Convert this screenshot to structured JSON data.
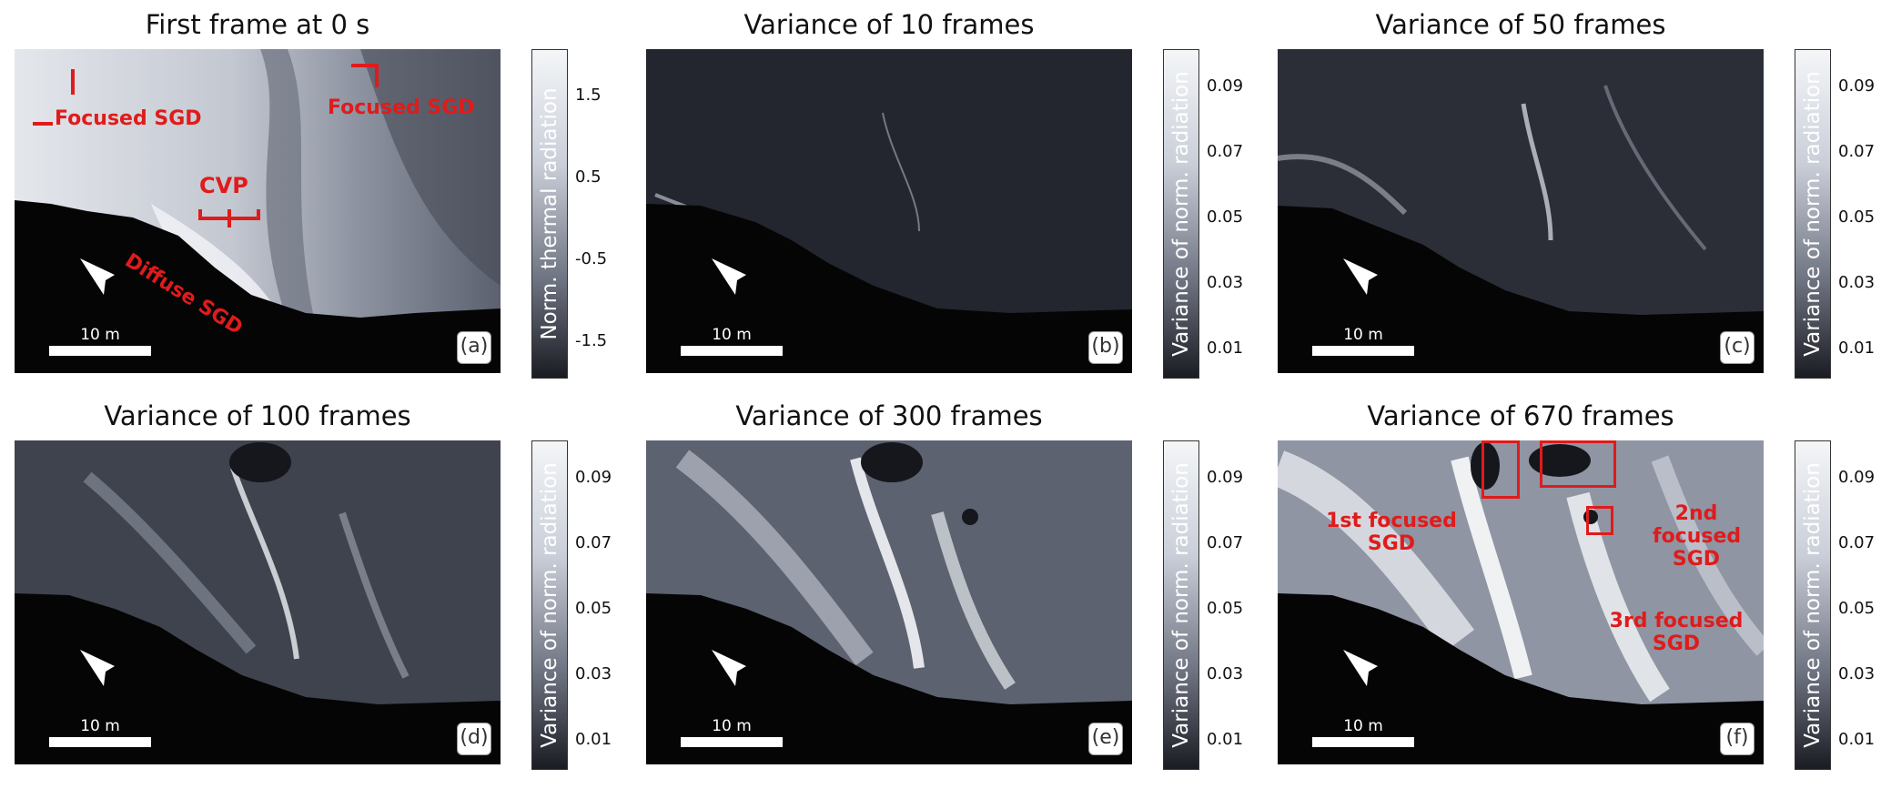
{
  "panels": [
    {
      "title": "First frame at 0 s",
      "letter": "(a)",
      "scale_label": "10 m",
      "north_label": "N",
      "colorbar": {
        "label": "Norm. thermal radiation",
        "ticks": [
          "1.5",
          "0.5",
          "-0.5",
          "-1.5"
        ]
      },
      "annotations": [
        "Focused SGD",
        "Focused SGD",
        "CVP",
        "Diffuse SGD"
      ]
    },
    {
      "title": "Variance of 10 frames",
      "letter": "(b)",
      "scale_label": "10 m",
      "north_label": "N",
      "colorbar": {
        "label": "Variance of norm. radiation",
        "ticks": [
          "0.09",
          "0.07",
          "0.05",
          "0.03",
          "0.01"
        ]
      }
    },
    {
      "title": "Variance of 50 frames",
      "letter": "(c)",
      "scale_label": "10 m",
      "north_label": "N",
      "colorbar": {
        "label": "Variance of norm. radiation",
        "ticks": [
          "0.09",
          "0.07",
          "0.05",
          "0.03",
          "0.01"
        ]
      }
    },
    {
      "title": "Variance of 100 frames",
      "letter": "(d)",
      "scale_label": "10 m",
      "north_label": "N",
      "colorbar": {
        "label": "Variance of norm. radiation",
        "ticks": [
          "0.09",
          "0.07",
          "0.05",
          "0.03",
          "0.01"
        ]
      }
    },
    {
      "title": "Variance of 300 frames",
      "letter": "(e)",
      "scale_label": "10 m",
      "north_label": "N",
      "colorbar": {
        "label": "Variance of norm. radiation",
        "ticks": [
          "0.09",
          "0.07",
          "0.05",
          "0.03",
          "0.01"
        ]
      }
    },
    {
      "title": "Variance of 670 frames",
      "letter": "(f)",
      "scale_label": "10 m",
      "north_label": "N",
      "colorbar": {
        "label": "Variance of norm. radiation",
        "ticks": [
          "0.09",
          "0.07",
          "0.05",
          "0.03",
          "0.01"
        ]
      },
      "annotations": [
        "1st focused SGD",
        "2nd focused SGD",
        "3rd focused SGD"
      ]
    }
  ],
  "colors": {
    "annotation": "#e01b1b",
    "land": "#050505"
  }
}
